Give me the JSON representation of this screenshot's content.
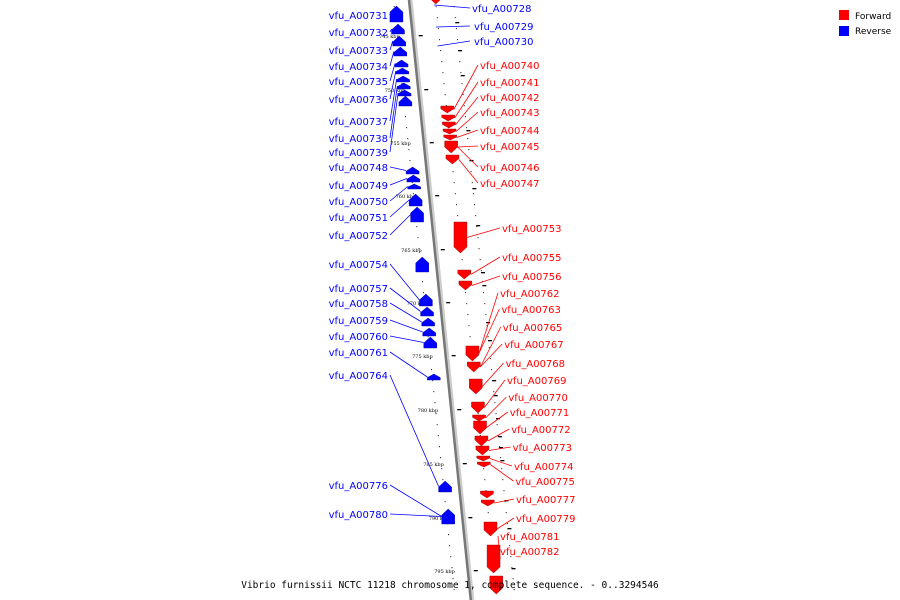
{
  "legend": {
    "forward_label": "Forward",
    "reverse_label": "Reverse",
    "forward_color": "#ff0000",
    "reverse_color": "#0000ff"
  },
  "caption": "Vibrio furnissii NCTC 11218 chromosome 1, complete sequence. - 0..3294546",
  "axis_ticks": [
    "745 kbp",
    "750 kbp",
    "755 kbp",
    "760 kbp",
    "765 kbp",
    "770 kbp",
    "775 kbp",
    "780 kbp",
    "785 kbp",
    "790 kbp",
    "795 kbp"
  ],
  "genes_reverse": [
    "vfu_A00731",
    "vfu_A00732",
    "vfu_A00733",
    "vfu_A00734",
    "vfu_A00735",
    "vfu_A00736",
    "vfu_A00737",
    "vfu_A00738",
    "vfu_A00739",
    "vfu_A00748",
    "vfu_A00749",
    "vfu_A00750",
    "vfu_A00751",
    "vfu_A00752",
    "vfu_A00754",
    "vfu_A00757",
    "vfu_A00758",
    "vfu_A00759",
    "vfu_A00760",
    "vfu_A00761",
    "vfu_A00764",
    "vfu_A00776",
    "vfu_A00780"
  ],
  "genes_forward": [
    "vfu_A00740",
    "vfu_A00741",
    "vfu_A00742",
    "vfu_A00743",
    "vfu_A00744",
    "vfu_A00745",
    "vfu_A00746",
    "vfu_A00747",
    "vfu_A00753",
    "vfu_A00755",
    "vfu_A00756",
    "vfu_A00762",
    "vfu_A00763",
    "vfu_A00765",
    "vfu_A00767",
    "vfu_A00768",
    "vfu_A00769",
    "vfu_A00770",
    "vfu_A00771",
    "vfu_A00772",
    "vfu_A00773",
    "vfu_A00774",
    "vfu_A00775",
    "vfu_A00777",
    "vfu_A00779",
    "vfu_A00781",
    "vfu_A00782"
  ],
  "genes_reverse_top": [
    "vfu_A00728",
    "vfu_A00729",
    "vfu_A00730"
  ]
}
